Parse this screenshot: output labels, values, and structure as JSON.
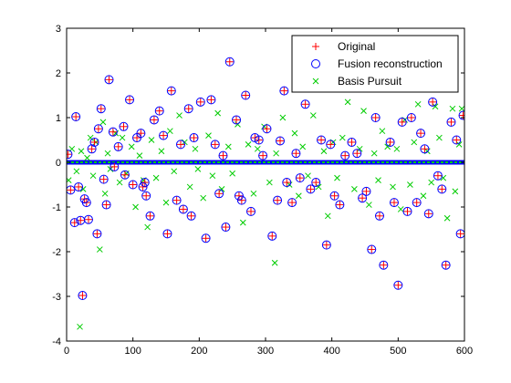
{
  "chart_data": {
    "type": "scatter",
    "title": "",
    "xlabel": "",
    "ylabel": "",
    "xlim": [
      0,
      600
    ],
    "ylim": [
      -4,
      3
    ],
    "x_ticks": [
      0,
      100,
      200,
      300,
      400,
      500,
      600
    ],
    "y_ticks": [
      -4,
      -3,
      -2,
      -1,
      0,
      1,
      2,
      3
    ],
    "grid": false,
    "legend_position": "top-right",
    "series": [
      {
        "name": "Original",
        "marker": "plus",
        "color": "#ff0000",
        "x": [
          2,
          6,
          12,
          14,
          18,
          21,
          24,
          27,
          30,
          33,
          38,
          42,
          46,
          48,
          52,
          56,
          60,
          64,
          70,
          72,
          78,
          86,
          88,
          95,
          100,
          106,
          112,
          115,
          118,
          120,
          126,
          132,
          140,
          146,
          152,
          158,
          166,
          172,
          176,
          184,
          188,
          192,
          202,
          210,
          218,
          224,
          230,
          236,
          240,
          246,
          256,
          260,
          264,
          270,
          278,
          284,
          290,
          296,
          302,
          310,
          318,
          322,
          328,
          332,
          340,
          346,
          352,
          360,
          368,
          376,
          384,
          392,
          398,
          404,
          412,
          420,
          430,
          438,
          446,
          452,
          460,
          466,
          472,
          478,
          488,
          494,
          500,
          506,
          514,
          520,
          528,
          534,
          540,
          546,
          552,
          560,
          566,
          572,
          580,
          588,
          594,
          598
        ],
        "y": [
          0.18,
          -0.62,
          -1.35,
          1.02,
          -0.55,
          -1.3,
          -2.98,
          -0.82,
          -0.9,
          -1.28,
          0.3,
          0.45,
          -1.6,
          0.75,
          1.2,
          -0.38,
          -0.95,
          1.85,
          0.68,
          -0.1,
          0.35,
          0.8,
          -0.28,
          1.4,
          -0.5,
          0.55,
          0.65,
          -0.55,
          -0.45,
          -0.75,
          -1.2,
          0.95,
          1.15,
          0.6,
          -1.6,
          1.6,
          -0.85,
          0.4,
          -1.05,
          1.2,
          -1.2,
          0.55,
          1.35,
          -1.7,
          1.4,
          0.4,
          -0.7,
          0.15,
          -1.45,
          2.25,
          0.95,
          -0.75,
          -0.85,
          1.5,
          -1.1,
          0.55,
          0.5,
          0.15,
          0.75,
          -1.65,
          -0.85,
          0.48,
          1.6,
          -0.45,
          -0.9,
          0.2,
          -0.35,
          1.3,
          -0.6,
          -0.45,
          0.5,
          -1.85,
          0.4,
          -0.75,
          -0.95,
          0.15,
          0.45,
          0.2,
          -0.8,
          -0.65,
          -1.95,
          1.0,
          -1.2,
          -2.3,
          0.45,
          -0.9,
          -2.75,
          0.9,
          -1.1,
          1.0,
          -0.9,
          0.65,
          0.3,
          -1.15,
          1.35,
          -0.3,
          -0.6,
          -2.3,
          0.9,
          0.5,
          -1.6,
          1.05
        ]
      },
      {
        "name": "Fusion reconstruction",
        "marker": "circle",
        "color": "#0000ff",
        "x": [
          2,
          6,
          12,
          14,
          18,
          21,
          24,
          27,
          30,
          33,
          38,
          42,
          46,
          48,
          52,
          56,
          60,
          64,
          70,
          72,
          78,
          86,
          88,
          95,
          100,
          106,
          112,
          115,
          118,
          120,
          126,
          132,
          140,
          146,
          152,
          158,
          166,
          172,
          176,
          184,
          188,
          192,
          202,
          210,
          218,
          224,
          230,
          236,
          240,
          246,
          256,
          260,
          264,
          270,
          278,
          284,
          290,
          296,
          302,
          310,
          318,
          322,
          328,
          332,
          340,
          346,
          352,
          360,
          368,
          376,
          384,
          392,
          398,
          404,
          412,
          420,
          430,
          438,
          446,
          452,
          460,
          466,
          472,
          478,
          488,
          494,
          500,
          506,
          514,
          520,
          528,
          534,
          540,
          546,
          552,
          560,
          566,
          572,
          580,
          588,
          594,
          598
        ],
        "y": [
          0.18,
          -0.62,
          -1.35,
          1.02,
          -0.55,
          -1.3,
          -2.98,
          -0.82,
          -0.9,
          -1.28,
          0.3,
          0.45,
          -1.6,
          0.75,
          1.2,
          -0.38,
          -0.95,
          1.85,
          0.68,
          -0.1,
          0.35,
          0.8,
          -0.28,
          1.4,
          -0.5,
          0.55,
          0.65,
          -0.55,
          -0.45,
          -0.75,
          -1.2,
          0.95,
          1.15,
          0.6,
          -1.6,
          1.6,
          -0.85,
          0.4,
          -1.05,
          1.2,
          -1.2,
          0.55,
          1.35,
          -1.7,
          1.4,
          0.4,
          -0.7,
          0.15,
          -1.45,
          2.25,
          0.95,
          -0.75,
          -0.85,
          1.5,
          -1.1,
          0.55,
          0.5,
          0.15,
          0.75,
          -1.65,
          -0.85,
          0.48,
          1.6,
          -0.45,
          -0.9,
          0.2,
          -0.35,
          1.3,
          -0.6,
          -0.45,
          0.5,
          -1.85,
          0.4,
          -0.75,
          -0.95,
          0.15,
          0.45,
          0.2,
          -0.8,
          -0.65,
          -1.95,
          1.0,
          -1.2,
          -2.3,
          0.45,
          -0.9,
          -2.75,
          0.9,
          -1.1,
          1.0,
          -0.9,
          0.65,
          0.3,
          -1.15,
          1.35,
          -0.3,
          -0.6,
          -2.3,
          0.9,
          0.5,
          -1.6,
          1.05
        ]
      },
      {
        "name": "Basis Pursuit",
        "marker": "x",
        "color": "#00cc00",
        "x": [
          3,
          8,
          15,
          20,
          22,
          25,
          31,
          36,
          40,
          44,
          50,
          55,
          58,
          62,
          66,
          74,
          80,
          84,
          90,
          98,
          104,
          110,
          116,
          122,
          128,
          135,
          143,
          150,
          156,
          162,
          170,
          178,
          186,
          194,
          198,
          206,
          214,
          220,
          228,
          234,
          244,
          250,
          258,
          266,
          274,
          282,
          288,
          298,
          306,
          314,
          316,
          326,
          336,
          344,
          350,
          356,
          364,
          372,
          380,
          388,
          394,
          402,
          408,
          416,
          424,
          434,
          442,
          448,
          456,
          464,
          470,
          476,
          484,
          492,
          498,
          504,
          510,
          518,
          524,
          530,
          538,
          544,
          550,
          556,
          562,
          568,
          574,
          582,
          586,
          592,
          596
        ],
        "y": [
          -0.4,
          0.3,
          -0.2,
          -3.68,
          0.25,
          -0.6,
          0.1,
          0.55,
          -0.3,
          0.45,
          -1.95,
          0.9,
          -0.7,
          0.2,
          -0.15,
          0.65,
          -0.45,
          0.55,
          -0.25,
          0.35,
          -1.0,
          0.15,
          -0.4,
          -1.45,
          0.5,
          -0.35,
          0.25,
          -0.9,
          0.7,
          -0.2,
          1.05,
          0.45,
          -0.55,
          0.3,
          -0.15,
          -0.8,
          0.6,
          -0.3,
          1.1,
          -0.6,
          0.35,
          -0.25,
          0.85,
          -1.35,
          0.4,
          -0.7,
          0.3,
          0.8,
          -0.45,
          -2.25,
          0.2,
          1.0,
          -0.5,
          0.65,
          -0.75,
          0.35,
          -0.3,
          1.05,
          -0.55,
          0.25,
          -1.2,
          0.45,
          -0.35,
          0.55,
          1.35,
          -0.6,
          0.3,
          1.15,
          -0.95,
          0.2,
          -0.4,
          0.7,
          0.35,
          -0.55,
          0.3,
          -1.05,
          0.95,
          -0.5,
          0.45,
          1.3,
          -0.75,
          0.25,
          -0.45,
          1.25,
          0.55,
          -0.35,
          -1.25,
          1.2,
          -0.65,
          0.4,
          1.2
        ]
      }
    ]
  }
}
